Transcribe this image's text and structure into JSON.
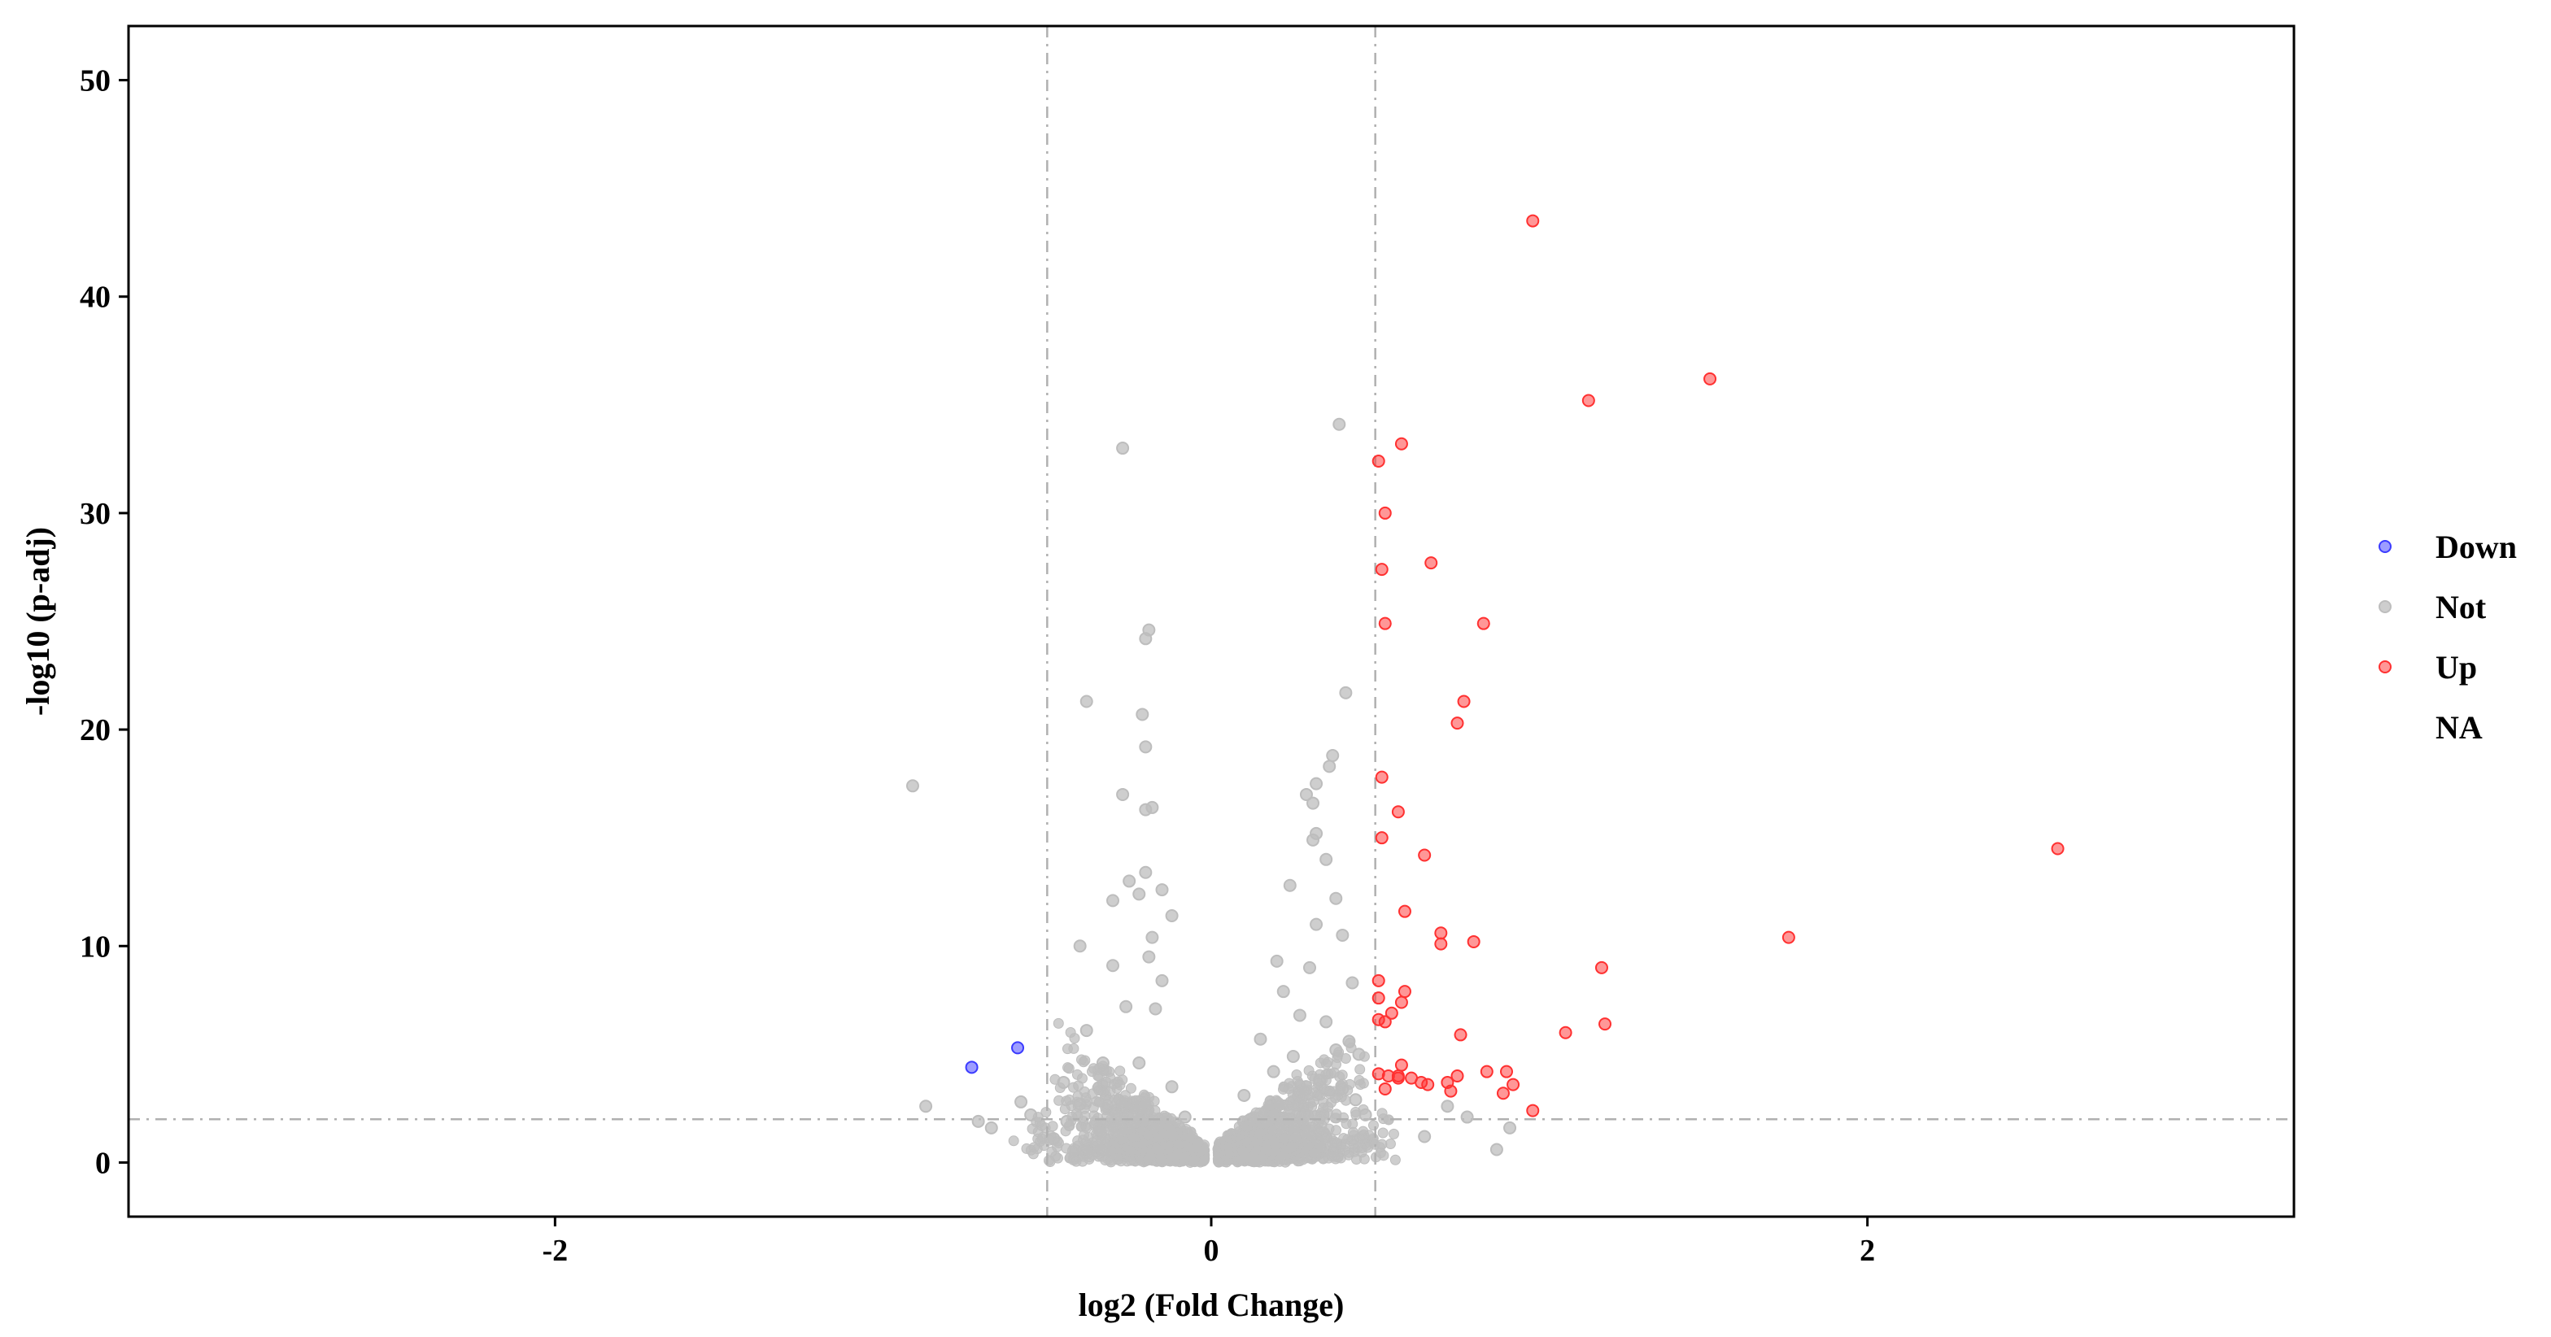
{
  "chart_data": {
    "type": "scatter",
    "title": "",
    "xlabel": "log2 (Fold Change)",
    "ylabel": "-log10 (p-adj)",
    "xlim": [
      -3.3,
      3.3
    ],
    "ylim": [
      -2.5,
      52.5
    ],
    "x_ticks": [
      -2,
      0,
      2
    ],
    "y_ticks": [
      0,
      10,
      20,
      30,
      40,
      50
    ],
    "thresholds": {
      "x": [
        -0.5,
        0.5
      ],
      "y": 2
    },
    "grid": false,
    "legend_position": "right",
    "colors": {
      "Down": "#3b3bff",
      "Not": "#bdbdbd",
      "Up": "#ff3030",
      "NA": "#ffffff"
    },
    "legend": [
      "Down",
      "Not",
      "Up",
      "NA"
    ],
    "series": [
      {
        "name": "Down",
        "points": [
          [
            -0.73,
            4.4
          ],
          [
            -0.59,
            5.3
          ]
        ]
      },
      {
        "name": "Up",
        "points": [
          [
            0.98,
            43.5
          ],
          [
            1.52,
            36.2
          ],
          [
            1.15,
            35.2
          ],
          [
            0.58,
            33.2
          ],
          [
            0.51,
            32.4
          ],
          [
            0.53,
            30.0
          ],
          [
            0.67,
            27.7
          ],
          [
            0.52,
            27.4
          ],
          [
            0.53,
            24.9
          ],
          [
            0.83,
            24.9
          ],
          [
            0.77,
            21.3
          ],
          [
            0.75,
            20.3
          ],
          [
            0.52,
            17.8
          ],
          [
            0.57,
            16.2
          ],
          [
            0.52,
            15.0
          ],
          [
            2.58,
            14.5
          ],
          [
            0.65,
            14.2
          ],
          [
            0.59,
            11.6
          ],
          [
            0.7,
            10.6
          ],
          [
            0.7,
            10.1
          ],
          [
            0.8,
            10.2
          ],
          [
            1.76,
            10.4
          ],
          [
            1.19,
            9.0
          ],
          [
            0.51,
            8.4
          ],
          [
            0.59,
            7.9
          ],
          [
            0.51,
            7.6
          ],
          [
            0.58,
            7.4
          ],
          [
            0.55,
            6.9
          ],
          [
            0.51,
            6.6
          ],
          [
            0.53,
            6.5
          ],
          [
            1.2,
            6.4
          ],
          [
            1.08,
            6.0
          ],
          [
            0.76,
            5.9
          ],
          [
            0.58,
            4.5
          ],
          [
            0.51,
            4.1
          ],
          [
            0.54,
            4.0
          ],
          [
            0.57,
            4.0
          ],
          [
            0.61,
            3.9
          ],
          [
            0.64,
            3.7
          ],
          [
            0.66,
            3.6
          ],
          [
            0.72,
            3.7
          ],
          [
            0.75,
            4.0
          ],
          [
            0.84,
            4.2
          ],
          [
            0.9,
            4.2
          ],
          [
            0.92,
            3.6
          ],
          [
            0.89,
            3.2
          ],
          [
            0.73,
            3.3
          ],
          [
            0.53,
            3.4
          ],
          [
            0.98,
            2.4
          ],
          [
            0.57,
            3.9
          ]
        ]
      },
      {
        "name": "Not",
        "points": [
          [
            -0.27,
            33.0
          ],
          [
            0.39,
            34.1
          ],
          [
            -0.19,
            24.6
          ],
          [
            -0.2,
            24.2
          ],
          [
            -0.38,
            21.3
          ],
          [
            -0.21,
            20.7
          ],
          [
            -0.2,
            19.2
          ],
          [
            -0.91,
            17.4
          ],
          [
            -0.27,
            17.0
          ],
          [
            -0.2,
            16.3
          ],
          [
            -0.18,
            16.4
          ],
          [
            0.41,
            21.7
          ],
          [
            0.37,
            18.8
          ],
          [
            0.36,
            18.3
          ],
          [
            0.32,
            17.5
          ],
          [
            0.29,
            17.0
          ],
          [
            0.31,
            16.6
          ],
          [
            0.32,
            15.2
          ],
          [
            0.31,
            14.9
          ],
          [
            0.35,
            14.0
          ],
          [
            -0.15,
            12.6
          ],
          [
            -0.12,
            11.4
          ],
          [
            0.38,
            12.2
          ],
          [
            -0.3,
            12.1
          ],
          [
            -0.22,
            12.4
          ],
          [
            -0.2,
            13.4
          ],
          [
            -0.25,
            13.0
          ],
          [
            -0.19,
            9.5
          ],
          [
            -0.15,
            8.4
          ],
          [
            0.24,
            12.8
          ],
          [
            0.32,
            11.0
          ],
          [
            0.43,
            8.3
          ],
          [
            0.4,
            10.5
          ],
          [
            -0.18,
            10.4
          ],
          [
            -0.4,
            10.0
          ],
          [
            -0.87,
            2.6
          ],
          [
            -0.67,
            1.6
          ],
          [
            -0.71,
            1.9
          ],
          [
            -0.58,
            2.8
          ],
          [
            0.87,
            0.6
          ],
          [
            0.65,
            1.2
          ],
          [
            0.78,
            2.1
          ],
          [
            0.91,
            1.6
          ],
          [
            0.72,
            2.6
          ],
          [
            -0.55,
            2.2
          ],
          [
            -0.45,
            3.7
          ],
          [
            -0.38,
            6.1
          ],
          [
            -0.3,
            9.1
          ],
          [
            0.2,
            9.3
          ],
          [
            0.22,
            7.9
          ],
          [
            0.3,
            9.0
          ],
          [
            0.27,
            6.8
          ],
          [
            0.42,
            5.6
          ],
          [
            0.45,
            5.0
          ],
          [
            0.47,
            2.2
          ],
          [
            -0.44,
            1.9
          ],
          [
            -0.4,
            2.7
          ],
          [
            -0.33,
            4.6
          ],
          [
            -0.26,
            7.2
          ],
          [
            -0.22,
            4.6
          ],
          [
            -0.17,
            7.1
          ],
          [
            0.15,
            5.7
          ],
          [
            0.19,
            4.2
          ],
          [
            0.25,
            4.9
          ],
          [
            0.33,
            3.8
          ],
          [
            0.35,
            6.5
          ],
          [
            0.38,
            5.2
          ],
          [
            0.4,
            3.4
          ],
          [
            0.44,
            2.9
          ],
          [
            -0.12,
            3.5
          ],
          [
            -0.08,
            2.1
          ],
          [
            0.1,
            3.1
          ],
          [
            0.12,
            2.0
          ],
          [
            -0.48,
            1.1
          ]
        ]
      }
    ]
  }
}
